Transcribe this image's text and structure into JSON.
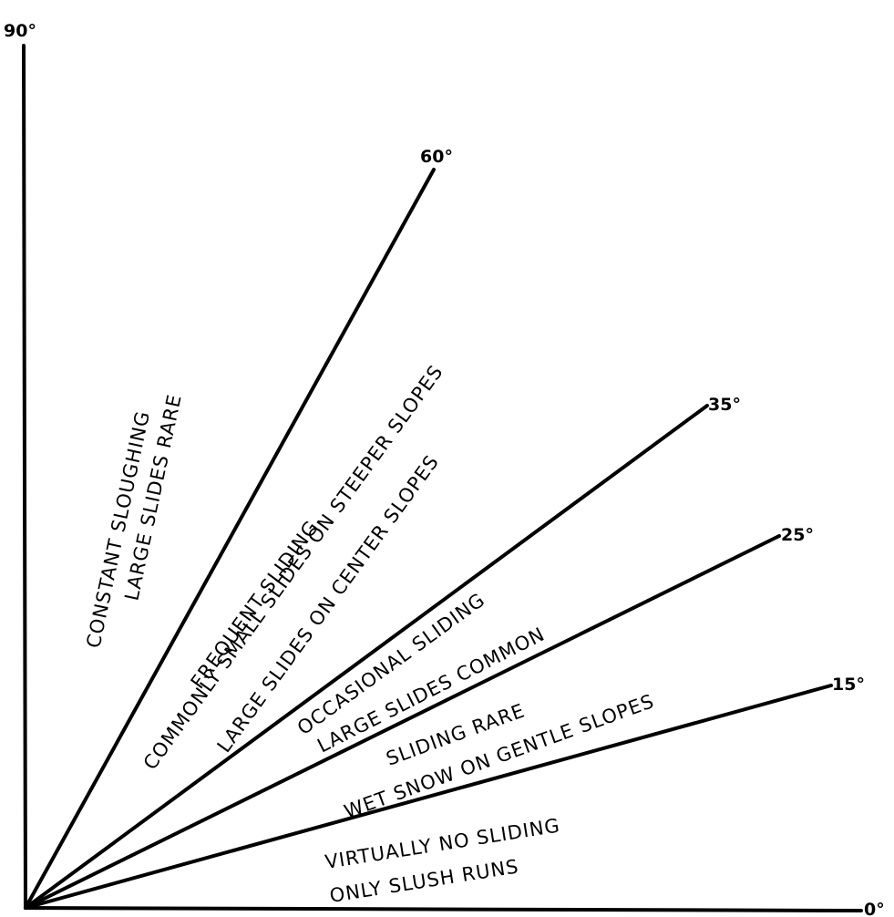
{
  "diagram": {
    "angle_labels": {
      "deg90": "90°",
      "deg60": "60°",
      "deg35": "35°",
      "deg25": "25°",
      "deg15": "15°",
      "deg0": "0°"
    },
    "zones": {
      "constant": {
        "line1": "CONSTANT   SLOUGHING",
        "line2": "LARGE   SLIDES RARE"
      },
      "frequent": {
        "line1": "FREQUENT   SLIDING",
        "line2": "COMMONLY SMALL SLIDES ON STEEPER SLOPES",
        "line3": "LARGE SLIDES ON CENTER SLOPES"
      },
      "occasional": {
        "line1": "OCCASIONAL   SLIDING",
        "line2": "LARGE   SLIDES COMMON"
      },
      "rare": {
        "line1": "SLIDING  RARE",
        "line2": "WET  SNOW ON GENTLE SLOPES"
      },
      "none": {
        "line1": "VIRTUALLY  NO  SLIDING",
        "line2": "ONLY  SLUSH  RUNS"
      }
    }
  }
}
